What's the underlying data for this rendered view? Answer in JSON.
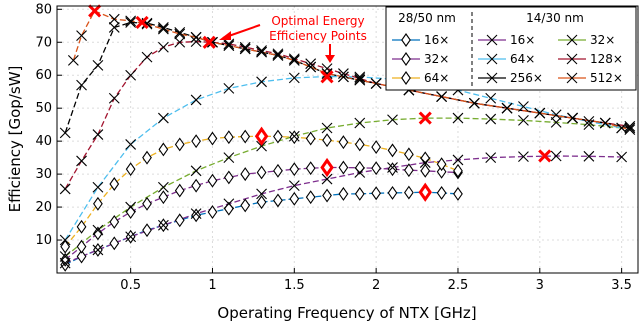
{
  "chart_data": {
    "type": "line",
    "xlabel": "Operating Frequency of NTX [GHz]",
    "ylabel": "Efficiency [Gop/sW]",
    "xlim": [
      0.05,
      3.6
    ],
    "ylim": [
      0,
      81
    ],
    "xticks": [
      0.5,
      1,
      1.5,
      2,
      2.5,
      3,
      3.5
    ],
    "xtick_labels": [
      "0.5",
      "1",
      "1.5",
      "2",
      "2.5",
      "3",
      "3.5"
    ],
    "yticks": [
      10,
      20,
      30,
      40,
      50,
      60,
      70,
      80
    ],
    "ytick_labels": [
      "10",
      "20",
      "30",
      "40",
      "50",
      "60",
      "70",
      "80"
    ],
    "grid": true,
    "legend": {
      "placement": "top-right",
      "group1_title": "28/50 nm",
      "group2_title": "14/30 nm"
    },
    "annotation": {
      "text_line1": "Optimal Energy",
      "text_line2": "Efficiency Points"
    },
    "optimal_points": [
      {
        "x": 0.28,
        "y": 79.5,
        "marker": "x"
      },
      {
        "x": 0.57,
        "y": 76,
        "marker": "x"
      },
      {
        "x": 0.98,
        "y": 70,
        "marker": "x"
      },
      {
        "x": 1.7,
        "y": 59.5,
        "marker": "x"
      },
      {
        "x": 2.3,
        "y": 47,
        "marker": "x"
      },
      {
        "x": 3.03,
        "y": 35.5,
        "marker": "x"
      },
      {
        "x": 1.3,
        "y": 41.5,
        "marker": "diamond"
      },
      {
        "x": 1.7,
        "y": 32,
        "marker": "diamond"
      },
      {
        "x": 2.3,
        "y": 24.5,
        "marker": "diamond"
      }
    ],
    "series": [
      {
        "name": "16×",
        "group": "28/50 nm",
        "marker": "diamond",
        "color": "#0072bd",
        "x": [
          0.1,
          0.2,
          0.3,
          0.4,
          0.5,
          0.6,
          0.7,
          0.8,
          0.9,
          1.0,
          1.1,
          1.2,
          1.3,
          1.4,
          1.5,
          1.6,
          1.7,
          1.8,
          1.9,
          2.0,
          2.1,
          2.2,
          2.3,
          2.4,
          2.5
        ],
        "y": [
          2.5,
          5,
          7,
          9,
          11,
          13,
          14.5,
          16,
          17.5,
          18.5,
          19.5,
          20.5,
          21.5,
          22,
          22.5,
          23,
          23.5,
          24,
          24,
          24.2,
          24.3,
          24.4,
          24.5,
          24.3,
          24
        ]
      },
      {
        "name": "32×",
        "group": "28/50 nm",
        "marker": "diamond",
        "color": "#7e2f8e",
        "x": [
          0.1,
          0.2,
          0.3,
          0.4,
          0.5,
          0.6,
          0.7,
          0.8,
          0.9,
          1.0,
          1.1,
          1.2,
          1.3,
          1.4,
          1.5,
          1.6,
          1.7,
          1.8,
          1.9,
          2.0,
          2.1,
          2.2,
          2.3,
          2.4,
          2.5
        ],
        "y": [
          4,
          8,
          12,
          15.5,
          18.5,
          21,
          23,
          25,
          26.5,
          28,
          29,
          30,
          30.5,
          31,
          31.5,
          31.8,
          32,
          32,
          31.9,
          31.8,
          31.5,
          31.2,
          31,
          30.7,
          30.5
        ]
      },
      {
        "name": "64×",
        "group": "28/50 nm",
        "marker": "diamond",
        "color": "#edb120",
        "x": [
          0.1,
          0.2,
          0.3,
          0.4,
          0.5,
          0.6,
          0.7,
          0.8,
          0.9,
          1.0,
          1.1,
          1.2,
          1.3,
          1.4,
          1.5,
          1.6,
          1.7,
          1.8,
          1.9,
          2.0,
          2.1,
          2.2,
          2.3,
          2.4,
          2.5
        ],
        "y": [
          8,
          14,
          21,
          27,
          31.5,
          35,
          37.5,
          39,
          40,
          40.8,
          41.2,
          41.4,
          41.5,
          41.4,
          41.2,
          40.8,
          40.3,
          39.7,
          39,
          38.2,
          37.2,
          36,
          34.8,
          33,
          31
        ]
      },
      {
        "name": "16×",
        "group": "14/30 nm",
        "marker": "x",
        "color": "#7e2f8e",
        "x": [
          0.1,
          0.3,
          0.5,
          0.7,
          0.9,
          1.1,
          1.3,
          1.5,
          1.7,
          1.9,
          2.1,
          2.3,
          2.5,
          2.7,
          2.9,
          3.1,
          3.3,
          3.5
        ],
        "y": [
          3,
          7,
          11,
          14.5,
          18,
          21,
          24,
          26.5,
          28.5,
          30.5,
          32,
          33.5,
          34.3,
          35,
          35.3,
          35.5,
          35.4,
          35.2
        ]
      },
      {
        "name": "32×",
        "group": "14/30 nm",
        "marker": "x",
        "color": "#77ac30",
        "x": [
          0.1,
          0.3,
          0.5,
          0.7,
          0.9,
          1.1,
          1.3,
          1.5,
          1.7,
          1.9,
          2.1,
          2.3,
          2.5,
          2.7,
          2.9,
          3.1,
          3.3,
          3.5
        ],
        "y": [
          5,
          13,
          20,
          26,
          31,
          35,
          38.5,
          41.5,
          44,
          45.5,
          46.5,
          47,
          47,
          46.7,
          46.3,
          45.7,
          45,
          44
        ]
      },
      {
        "name": "64×",
        "group": "14/30 nm",
        "marker": "x",
        "color": "#4dbeee",
        "x": [
          0.1,
          0.3,
          0.5,
          0.7,
          0.9,
          1.1,
          1.3,
          1.5,
          1.7,
          1.9,
          2.1,
          2.3,
          2.5,
          2.7,
          2.9,
          3.1,
          3.3,
          3.5
        ],
        "y": [
          10,
          26,
          39,
          47,
          52.5,
          56,
          58,
          59.2,
          59.6,
          59.5,
          58.8,
          57.5,
          55.5,
          53,
          50.5,
          48,
          46,
          44
        ]
      },
      {
        "name": "128×",
        "group": "14/30 nm",
        "marker": "x",
        "color": "#a2142f",
        "x": [
          0.1,
          0.2,
          0.3,
          0.4,
          0.5,
          0.6,
          0.7,
          0.8,
          0.9,
          1.0,
          1.1,
          1.2,
          1.3,
          1.4,
          1.5,
          1.6,
          1.7,
          1.8,
          1.9,
          2.0,
          2.2,
          2.4,
          2.6,
          2.8,
          3.0,
          3.2,
          3.4,
          3.55
        ],
        "y": [
          25.5,
          34,
          42,
          53,
          60,
          65.5,
          68.5,
          70,
          70.2,
          70,
          69.5,
          68.5,
          67.5,
          66.5,
          65,
          63.5,
          62,
          60.5,
          59,
          57.5,
          55.5,
          53.5,
          51.5,
          50,
          48.5,
          47,
          45.5,
          44.5
        ]
      },
      {
        "name": "256×",
        "group": "14/30 nm",
        "marker": "x",
        "color": "#000000",
        "x": [
          0.1,
          0.2,
          0.3,
          0.4,
          0.5,
          0.6,
          0.7,
          0.8,
          0.9,
          1.0,
          1.1,
          1.2,
          1.3,
          1.4,
          1.5,
          1.6,
          1.7,
          1.8,
          1.9,
          2.0,
          2.2,
          2.4,
          2.6,
          2.8,
          3.0,
          3.2,
          3.4,
          3.55
        ],
        "y": [
          42.5,
          57,
          63,
          74.5,
          76,
          75.8,
          74.5,
          73,
          71.5,
          70,
          69,
          68,
          67,
          66,
          64.5,
          62.5,
          60.5,
          59.5,
          58.5,
          57.5,
          55.5,
          53.5,
          51.5,
          50,
          48.5,
          47,
          45.5,
          44
        ]
      },
      {
        "name": "512×",
        "group": "14/30 nm",
        "marker": "x",
        "color": "#d95319",
        "x": [
          0.15,
          0.2,
          0.28,
          0.4,
          0.5,
          0.6,
          0.7,
          0.8,
          0.9,
          1.0,
          1.1,
          1.2,
          1.3,
          1.4,
          1.5,
          1.6,
          1.7,
          1.8,
          1.9,
          2.0,
          2.2,
          2.4,
          2.6,
          2.8,
          3.0,
          3.2,
          3.4,
          3.55
        ],
        "y": [
          64.5,
          72,
          79.5,
          77,
          76.5,
          75.5,
          74,
          72.5,
          71.5,
          70,
          69,
          68,
          67,
          66,
          64.5,
          62.5,
          60.5,
          59.5,
          58.5,
          57.5,
          55.5,
          53.5,
          51.5,
          50,
          48.5,
          47,
          45.5,
          43.5
        ]
      }
    ]
  }
}
